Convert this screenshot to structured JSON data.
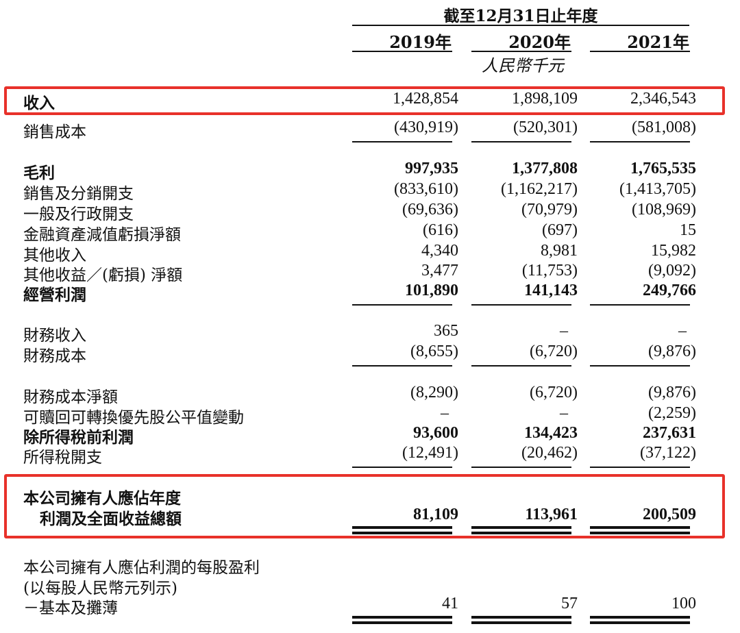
{
  "header": {
    "period": "截至12月31日止年度",
    "years": [
      "2019年",
      "2020年",
      "2021年"
    ],
    "currency": "人民幣千元"
  },
  "rows": [
    {
      "label": "收入",
      "values": [
        "1,428,854",
        "1,898,109",
        "2,346,543"
      ],
      "bold": true
    },
    {
      "label": "銷售成本",
      "values": [
        "(430,919)",
        "(520,301)",
        "(581,008)"
      ],
      "bold": false
    },
    {
      "label": "毛利",
      "values": [
        "997,935",
        "1,377,808",
        "1,765,535"
      ],
      "bold": true
    },
    {
      "label": "銷售及分銷開支",
      "values": [
        "(833,610)",
        "(1,162,217)",
        "(1,413,705)"
      ],
      "bold": false
    },
    {
      "label": "一般及行政開支",
      "values": [
        "(69,636)",
        "(70,979)",
        "(108,969)"
      ],
      "bold": false
    },
    {
      "label": "金融資產減值虧損淨額",
      "values": [
        "(616)",
        "(697)",
        "15"
      ],
      "bold": false
    },
    {
      "label": "其他收入",
      "values": [
        "4,340",
        "8,981",
        "15,982"
      ],
      "bold": false
    },
    {
      "label": "其他收益／(虧損) 淨額",
      "values": [
        "3,477",
        "(11,753)",
        "(9,092)"
      ],
      "bold": false
    },
    {
      "label": "經營利潤",
      "values": [
        "101,890",
        "141,143",
        "249,766"
      ],
      "bold": true
    },
    {
      "label": "財務收入",
      "values": [
        "365",
        "–",
        "–"
      ],
      "bold": false
    },
    {
      "label": "財務成本",
      "values": [
        "(8,655)",
        "(6,720)",
        "(9,876)"
      ],
      "bold": false
    },
    {
      "label": "財務成本淨額",
      "values": [
        "(8,290)",
        "(6,720)",
        "(9,876)"
      ],
      "bold": false
    },
    {
      "label": "可贖回可轉換優先股公平值變動",
      "values": [
        "–",
        "–",
        "(2,259)"
      ],
      "bold": false
    },
    {
      "label": "除所得稅前利潤",
      "values": [
        "93,600",
        "134,423",
        "237,631"
      ],
      "bold": true
    },
    {
      "label": "所得稅開支",
      "values": [
        "(12,491)",
        "(20,462)",
        "(37,122)"
      ],
      "bold": false
    },
    {
      "label": "本公司擁有人應佔年度",
      "values": [
        "",
        "",
        ""
      ],
      "bold": true
    },
    {
      "label": "利潤及全面收益總額",
      "values": [
        "81,109",
        "113,961",
        "200,509"
      ],
      "bold": true
    },
    {
      "label": "本公司擁有人應佔利潤的每股盈利",
      "values": [
        "",
        "",
        ""
      ],
      "bold": false
    },
    {
      "label": "(以每股人民幣元列示)",
      "values": [
        "",
        "",
        ""
      ],
      "bold": false
    },
    {
      "label": "－基本及攤薄",
      "values": [
        "41",
        "57",
        "100"
      ],
      "bold": false
    }
  ],
  "colors": {
    "highlight": "#e8312a",
    "text": "#111111"
  }
}
